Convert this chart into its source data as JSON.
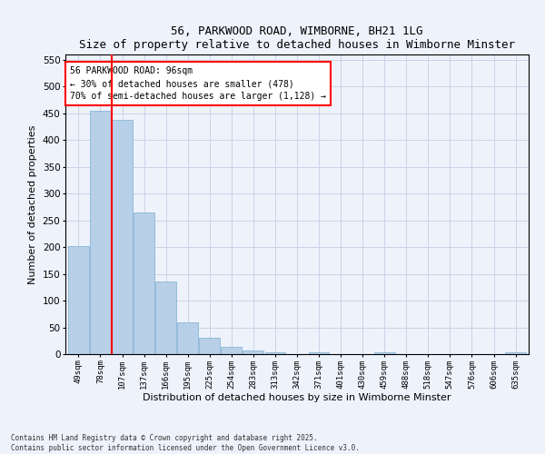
{
  "title": "56, PARKWOOD ROAD, WIMBORNE, BH21 1LG",
  "subtitle": "Size of property relative to detached houses in Wimborne Minster",
  "xlabel": "Distribution of detached houses by size in Wimborne Minster",
  "ylabel": "Number of detached properties",
  "categories": [
    "49sqm",
    "78sqm",
    "107sqm",
    "137sqm",
    "166sqm",
    "195sqm",
    "225sqm",
    "254sqm",
    "283sqm",
    "313sqm",
    "342sqm",
    "371sqm",
    "401sqm",
    "430sqm",
    "459sqm",
    "488sqm",
    "518sqm",
    "547sqm",
    "576sqm",
    "606sqm",
    "635sqm"
  ],
  "values": [
    202,
    455,
    438,
    265,
    135,
    60,
    31,
    13,
    6,
    3,
    0,
    4,
    0,
    0,
    3,
    0,
    0,
    0,
    0,
    0,
    3
  ],
  "bar_color": "#b8cfe8",
  "bar_edge_color": "#7aaed0",
  "vline_x": 1.5,
  "vline_color": "red",
  "ylim": [
    0,
    560
  ],
  "yticks": [
    0,
    50,
    100,
    150,
    200,
    250,
    300,
    350,
    400,
    450,
    500,
    550
  ],
  "annotation_text": "56 PARKWOOD ROAD: 96sqm\n← 30% of detached houses are smaller (478)\n70% of semi-detached houses are larger (1,128) →",
  "annotation_box_color": "white",
  "annotation_box_edge_color": "red",
  "footnote": "Contains HM Land Registry data © Crown copyright and database right 2025.\nContains public sector information licensed under the Open Government Licence v3.0.",
  "bg_color": "#eef2fb",
  "grid_color": "#c8d4e8"
}
